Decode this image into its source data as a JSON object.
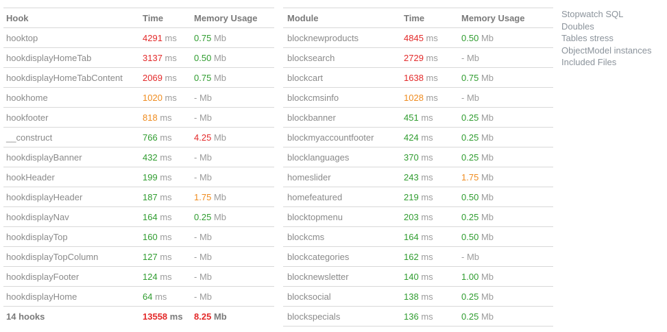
{
  "units": {
    "time_unit": "ms",
    "memory_unit": "Mb"
  },
  "colors": {
    "red": "#e32929",
    "orange": "#ef8b1e",
    "green": "#2f9c2f",
    "gray_text": "#8a8a8a",
    "unit_gray": "#9b9b9b",
    "header_gray": "#7a7a7a",
    "border": "#d8d8d8",
    "link": "#8b939b"
  },
  "hooks_table": {
    "headers": {
      "name": "Hook",
      "time": "Time",
      "memory": "Memory Usage"
    },
    "rows": [
      {
        "name": "hooktop",
        "time": "4291",
        "time_color": "red",
        "memory": "0.75",
        "memory_color": "green"
      },
      {
        "name": "hookdisplayHomeTab",
        "time": "3137",
        "time_color": "red",
        "memory": "0.50",
        "memory_color": "green"
      },
      {
        "name": "hookdisplayHomeTabContent",
        "time": "2069",
        "time_color": "red",
        "memory": "0.75",
        "memory_color": "green"
      },
      {
        "name": "hookhome",
        "time": "1020",
        "time_color": "orange",
        "memory": "-",
        "memory_color": "gray"
      },
      {
        "name": "hookfooter",
        "time": "818",
        "time_color": "orange",
        "memory": "-",
        "memory_color": "gray"
      },
      {
        "name": "__construct",
        "time": "766",
        "time_color": "green",
        "memory": "4.25",
        "memory_color": "red"
      },
      {
        "name": "hookdisplayBanner",
        "time": "432",
        "time_color": "green",
        "memory": "-",
        "memory_color": "gray"
      },
      {
        "name": "hookHeader",
        "time": "199",
        "time_color": "green",
        "memory": "-",
        "memory_color": "gray"
      },
      {
        "name": "hookdisplayHeader",
        "time": "187",
        "time_color": "green",
        "memory": "1.75",
        "memory_color": "orange"
      },
      {
        "name": "hookdisplayNav",
        "time": "164",
        "time_color": "green",
        "memory": "0.25",
        "memory_color": "green"
      },
      {
        "name": "hookdisplayTop",
        "time": "160",
        "time_color": "green",
        "memory": "-",
        "memory_color": "gray"
      },
      {
        "name": "hookdisplayTopColumn",
        "time": "127",
        "time_color": "green",
        "memory": "-",
        "memory_color": "gray"
      },
      {
        "name": "hookdisplayFooter",
        "time": "124",
        "time_color": "green",
        "memory": "-",
        "memory_color": "gray"
      },
      {
        "name": "hookdisplayHome",
        "time": "64",
        "time_color": "green",
        "memory": "-",
        "memory_color": "gray"
      }
    ],
    "total": {
      "name": "14 hooks",
      "time": "13558",
      "time_color": "red",
      "memory": "8.25",
      "memory_color": "red"
    }
  },
  "modules_table": {
    "headers": {
      "name": "Module",
      "time": "Time",
      "memory": "Memory Usage"
    },
    "rows": [
      {
        "name": "blocknewproducts",
        "time": "4845",
        "time_color": "red",
        "memory": "0.50",
        "memory_color": "green"
      },
      {
        "name": "blocksearch",
        "time": "2729",
        "time_color": "red",
        "memory": "-",
        "memory_color": "gray"
      },
      {
        "name": "blockcart",
        "time": "1638",
        "time_color": "red",
        "memory": "0.75",
        "memory_color": "green"
      },
      {
        "name": "blockcmsinfo",
        "time": "1028",
        "time_color": "orange",
        "memory": "-",
        "memory_color": "gray"
      },
      {
        "name": "blockbanner",
        "time": "451",
        "time_color": "green",
        "memory": "0.25",
        "memory_color": "green"
      },
      {
        "name": "blockmyaccountfooter",
        "time": "424",
        "time_color": "green",
        "memory": "0.25",
        "memory_color": "green"
      },
      {
        "name": "blocklanguages",
        "time": "370",
        "time_color": "green",
        "memory": "0.25",
        "memory_color": "green"
      },
      {
        "name": "homeslider",
        "time": "243",
        "time_color": "green",
        "memory": "1.75",
        "memory_color": "orange"
      },
      {
        "name": "homefeatured",
        "time": "219",
        "time_color": "green",
        "memory": "0.50",
        "memory_color": "green"
      },
      {
        "name": "blocktopmenu",
        "time": "203",
        "time_color": "green",
        "memory": "0.25",
        "memory_color": "green"
      },
      {
        "name": "blockcms",
        "time": "164",
        "time_color": "green",
        "memory": "0.50",
        "memory_color": "green"
      },
      {
        "name": "blockcategories",
        "time": "162",
        "time_color": "green",
        "memory": "-",
        "memory_color": "gray"
      },
      {
        "name": "blocknewsletter",
        "time": "140",
        "time_color": "green",
        "memory": "1.00",
        "memory_color": "green"
      },
      {
        "name": "blocksocial",
        "time": "138",
        "time_color": "green",
        "memory": "0.25",
        "memory_color": "green"
      },
      {
        "name": "blockspecials",
        "time": "136",
        "time_color": "green",
        "memory": "0.25",
        "memory_color": "green"
      }
    ]
  },
  "nav_links": [
    "Stopwatch SQL",
    "Doubles",
    "Tables stress",
    "ObjectModel instances",
    "Included Files"
  ]
}
